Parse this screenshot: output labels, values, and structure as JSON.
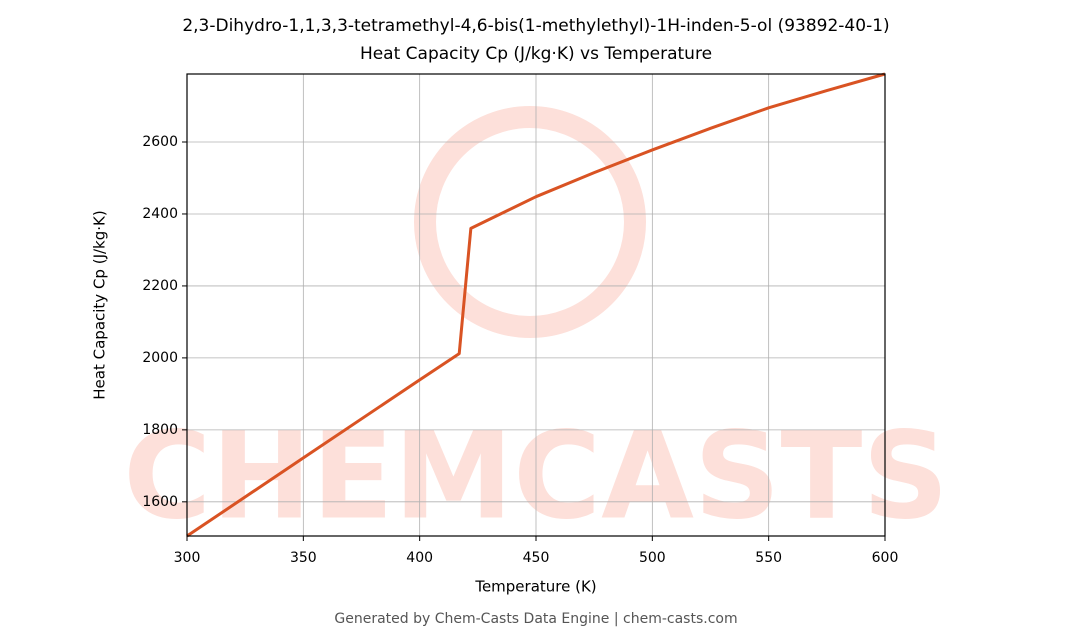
{
  "chart_data": {
    "type": "line",
    "title": "2,3-Dihydro-1,1,3,3-tetramethyl-4,6-bis(1-methylethyl)-1H-inden-5-ol (93892-40-1)",
    "subtitle": "Heat Capacity Cp (J/kg·K) vs Temperature",
    "x_label": "Temperature (K)",
    "y_label": "Heat Capacity Cp (J/kg·K)",
    "footer": "Generated by Chem-Casts Data Engine | chem-casts.com",
    "watermark": "CHEMCASTS",
    "x": [
      300,
      350,
      400,
      417,
      422,
      450,
      475,
      500,
      525,
      550,
      575,
      600
    ],
    "series": [
      {
        "name": "Cp",
        "color": "#d95323",
        "values": [
          1505,
          1722,
          1939,
          2012,
          2360,
          2448,
          2515,
          2578,
          2638,
          2695,
          2743,
          2789
        ]
      }
    ],
    "xlim": [
      300,
      600
    ],
    "xticks": [
      300,
      350,
      400,
      450,
      500,
      550,
      600
    ],
    "ylim": [
      1505,
      2789
    ],
    "yticks": [
      1600,
      1800,
      2000,
      2200,
      2400,
      2600
    ],
    "grid": true
  }
}
